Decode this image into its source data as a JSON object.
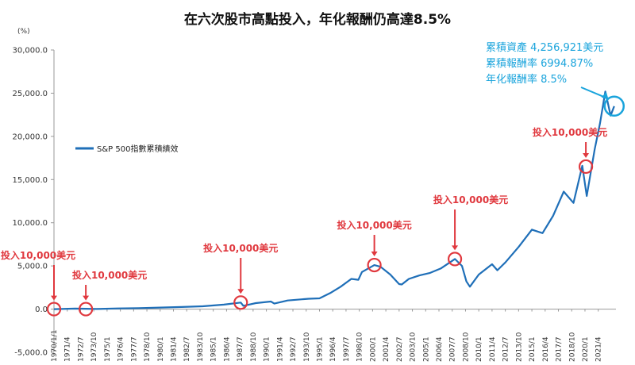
{
  "chart_data": {
    "type": "line",
    "title": "在六次股市高點投入，年化報酬仍高達8.5%",
    "unit_label": "(%)",
    "legend": {
      "label": "S&P 500指數累積績效",
      "placement": "upper-left"
    },
    "ylim": [
      -5000,
      30000
    ],
    "yticks": [
      {
        "value": -5000,
        "label": "-5,000.0"
      },
      {
        "value": 0,
        "label": "0.0"
      },
      {
        "value": 5000,
        "label": "5,000.0"
      },
      {
        "value": 10000,
        "label": "10,000.0"
      },
      {
        "value": 15000,
        "label": "15,000.0"
      },
      {
        "value": 20000,
        "label": "20,000.0"
      },
      {
        "value": 25000,
        "label": "25,000.0"
      },
      {
        "value": 30000,
        "label": "30,000.0"
      }
    ],
    "x_range": [
      "1970/1/1",
      "2022/12/1"
    ],
    "xticks": [
      "1970/1/1",
      "1971/4",
      "1972/7",
      "1973/10",
      "1975/1",
      "1976/4",
      "1977/7",
      "1978/10",
      "1980/1",
      "1981/4",
      "1982/7",
      "1983/10",
      "1985/1",
      "1986/4",
      "1987/7",
      "1988/10",
      "1990/1",
      "1991/4",
      "1992/7",
      "1993/10",
      "1995/1",
      "1996/4",
      "1997/7",
      "1998/10",
      "2000/1",
      "2001/4",
      "2002/7",
      "2003/10",
      "2005/1",
      "2006/4",
      "2007/7",
      "2008/10",
      "2010/1",
      "2011/4",
      "2012/7",
      "2013/10",
      "2015/1",
      "2016/4",
      "2017/7",
      "2018/10",
      "2020/1",
      "2021/4"
    ],
    "series": [
      {
        "name": "S&P 500指數累積績效",
        "color": "#1f6fb8",
        "points": [
          [
            "1970/1",
            0
          ],
          [
            "1972/1",
            60
          ],
          [
            "1974/1",
            20
          ],
          [
            "1976/1",
            80
          ],
          [
            "1978/1",
            120
          ],
          [
            "1980/1",
            180
          ],
          [
            "1982/1",
            250
          ],
          [
            "1984/1",
            330
          ],
          [
            "1986/1",
            520
          ],
          [
            "1987/8",
            760
          ],
          [
            "1987/11",
            380
          ],
          [
            "1989/1",
            700
          ],
          [
            "1990/6",
            880
          ],
          [
            "1990/10",
            640
          ],
          [
            "1992/1",
            1000
          ],
          [
            "1994/1",
            1200
          ],
          [
            "1995/1",
            1250
          ],
          [
            "1996/1",
            1850
          ],
          [
            "1997/1",
            2600
          ],
          [
            "1998/1",
            3500
          ],
          [
            "1998/9",
            3400
          ],
          [
            "1999/1",
            4300
          ],
          [
            "2000/3",
            5100
          ],
          [
            "2000/10",
            4900
          ],
          [
            "2001/9",
            4000
          ],
          [
            "2002/7",
            2900
          ],
          [
            "2002/10",
            2850
          ],
          [
            "2003/6",
            3500
          ],
          [
            "2004/6",
            3900
          ],
          [
            "2005/6",
            4200
          ],
          [
            "2006/6",
            4700
          ],
          [
            "2007/10",
            5800
          ],
          [
            "2008/6",
            5000
          ],
          [
            "2008/11",
            3200
          ],
          [
            "2009/3",
            2600
          ],
          [
            "2010/1",
            4000
          ],
          [
            "2011/4",
            5200
          ],
          [
            "2011/10",
            4500
          ],
          [
            "2012/7",
            5400
          ],
          [
            "2013/10",
            7200
          ],
          [
            "2015/1",
            9200
          ],
          [
            "2016/1",
            8800
          ],
          [
            "2017/1",
            10800
          ],
          [
            "2018/1",
            13600
          ],
          [
            "2018/12",
            12300
          ],
          [
            "2019/10",
            16600
          ],
          [
            "2020/3",
            13100
          ],
          [
            "2020/12",
            18500
          ],
          [
            "2021/6",
            21500
          ],
          [
            "2021/12",
            25200
          ],
          [
            "2022/6",
            22400
          ],
          [
            "2022/10",
            23500
          ]
        ]
      }
    ],
    "investment_markers": [
      {
        "date": "1970/1",
        "value": 0,
        "label": "投入10,000美元"
      },
      {
        "date": "1973/1",
        "value": 0,
        "label": "投入10,000美元"
      },
      {
        "date": "1987/8",
        "value": 760,
        "label": "投入10,000美元"
      },
      {
        "date": "2000/3",
        "value": 5100,
        "label": "投入10,000美元"
      },
      {
        "date": "2007/10",
        "value": 5800,
        "label": "投入10,000美元"
      },
      {
        "date": "2020/2",
        "value": 16500,
        "label": "投入10,000美元"
      }
    ],
    "final_marker": {
      "date": "2022/10",
      "value": 23500
    },
    "summary": [
      "累積資產 4,256,921美元",
      "累積報酬率 6994.87%",
      "年化報酬率 8.5%"
    ]
  }
}
